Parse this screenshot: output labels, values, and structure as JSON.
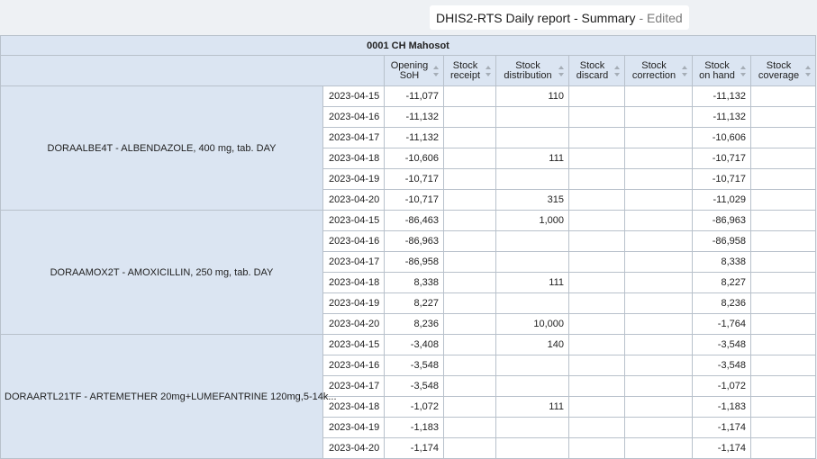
{
  "header": {
    "title": "DHIS2-RTS Daily report - Summary",
    "status": "- Edited"
  },
  "table": {
    "org_unit": "0001 CH Mahosot",
    "columns": [
      {
        "line1": "Opening",
        "line2": "SoH"
      },
      {
        "line1": "Stock",
        "line2": "receipt"
      },
      {
        "line1": "Stock",
        "line2": "distribution"
      },
      {
        "line1": "Stock",
        "line2": "discard"
      },
      {
        "line1": "Stock",
        "line2": "correction"
      },
      {
        "line1": "Stock",
        "line2": "on hand"
      },
      {
        "line1": "Stock",
        "line2": "coverage"
      }
    ],
    "groups": [
      {
        "item": "DORAALBE4T - ALBENDAZOLE, 400 mg, tab. DAY",
        "rows": [
          {
            "date": "2023-04-15",
            "opening": "-11,077",
            "receipt": "",
            "distribution": "110",
            "discard": "",
            "correction": "",
            "on_hand": "-11,132",
            "coverage": ""
          },
          {
            "date": "2023-04-16",
            "opening": "-11,132",
            "receipt": "",
            "distribution": "",
            "discard": "",
            "correction": "",
            "on_hand": "-11,132",
            "coverage": ""
          },
          {
            "date": "2023-04-17",
            "opening": "-11,132",
            "receipt": "",
            "distribution": "",
            "discard": "",
            "correction": "",
            "on_hand": "-10,606",
            "coverage": ""
          },
          {
            "date": "2023-04-18",
            "opening": "-10,606",
            "receipt": "",
            "distribution": "111",
            "discard": "",
            "correction": "",
            "on_hand": "-10,717",
            "coverage": ""
          },
          {
            "date": "2023-04-19",
            "opening": "-10,717",
            "receipt": "",
            "distribution": "",
            "discard": "",
            "correction": "",
            "on_hand": "-10,717",
            "coverage": ""
          },
          {
            "date": "2023-04-20",
            "opening": "-10,717",
            "receipt": "",
            "distribution": "315",
            "discard": "",
            "correction": "",
            "on_hand": "-11,029",
            "coverage": ""
          }
        ]
      },
      {
        "item": "DORAAMOX2T - AMOXICILLIN, 250 mg, tab. DAY",
        "rows": [
          {
            "date": "2023-04-15",
            "opening": "-86,463",
            "receipt": "",
            "distribution": "1,000",
            "discard": "",
            "correction": "",
            "on_hand": "-86,963",
            "coverage": ""
          },
          {
            "date": "2023-04-16",
            "opening": "-86,963",
            "receipt": "",
            "distribution": "",
            "discard": "",
            "correction": "",
            "on_hand": "-86,958",
            "coverage": ""
          },
          {
            "date": "2023-04-17",
            "opening": "-86,958",
            "receipt": "",
            "distribution": "",
            "discard": "",
            "correction": "",
            "on_hand": "8,338",
            "coverage": ""
          },
          {
            "date": "2023-04-18",
            "opening": "8,338",
            "receipt": "",
            "distribution": "111",
            "discard": "",
            "correction": "",
            "on_hand": "8,227",
            "coverage": ""
          },
          {
            "date": "2023-04-19",
            "opening": "8,227",
            "receipt": "",
            "distribution": "",
            "discard": "",
            "correction": "",
            "on_hand": "8,236",
            "coverage": ""
          },
          {
            "date": "2023-04-20",
            "opening": "8,236",
            "receipt": "",
            "distribution": "10,000",
            "discard": "",
            "correction": "",
            "on_hand": "-1,764",
            "coverage": ""
          }
        ]
      },
      {
        "item": "DORAARTL21TF - ARTEMETHER 20mg+LUMEFANTRINE 120mg,5-14k...",
        "rows": [
          {
            "date": "2023-04-15",
            "opening": "-3,408",
            "receipt": "",
            "distribution": "140",
            "discard": "",
            "correction": "",
            "on_hand": "-3,548",
            "coverage": ""
          },
          {
            "date": "2023-04-16",
            "opening": "-3,548",
            "receipt": "",
            "distribution": "",
            "discard": "",
            "correction": "",
            "on_hand": "-3,548",
            "coverage": ""
          },
          {
            "date": "2023-04-17",
            "opening": "-3,548",
            "receipt": "",
            "distribution": "",
            "discard": "",
            "correction": "",
            "on_hand": "-1,072",
            "coverage": ""
          },
          {
            "date": "2023-04-18",
            "opening": "-1,072",
            "receipt": "",
            "distribution": "111",
            "discard": "",
            "correction": "",
            "on_hand": "-1,183",
            "coverage": ""
          },
          {
            "date": "2023-04-19",
            "opening": "-1,183",
            "receipt": "",
            "distribution": "",
            "discard": "",
            "correction": "",
            "on_hand": "-1,174",
            "coverage": ""
          },
          {
            "date": "2023-04-20",
            "opening": "-1,174",
            "receipt": "",
            "distribution": "",
            "discard": "",
            "correction": "",
            "on_hand": "-1,174",
            "coverage": ""
          }
        ]
      }
    ]
  }
}
